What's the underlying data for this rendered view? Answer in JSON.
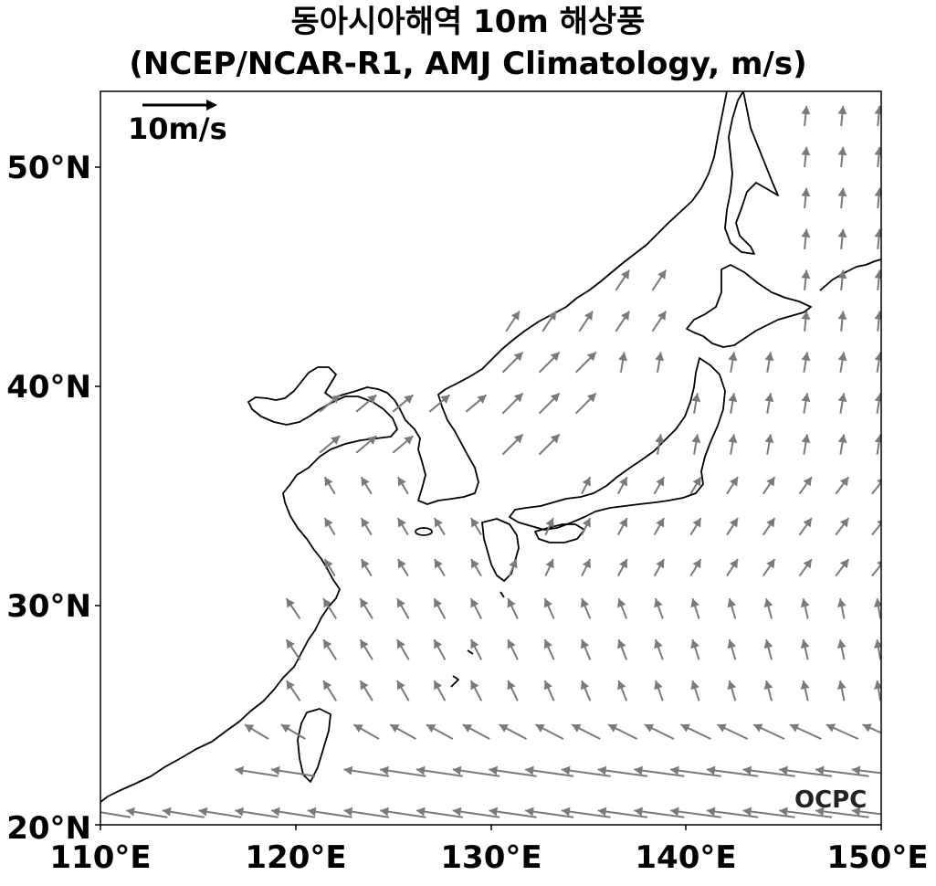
{
  "title": {
    "line1": "동아시아해역 10m 해상풍",
    "line2": "(NCEP/NCAR-R1, AMJ Climatology, m/s)"
  },
  "reference_vector": {
    "label": "10m/s",
    "speed": 10
  },
  "logo": {
    "text": "OCPC"
  },
  "axes": {
    "x_ticks": [
      110,
      120,
      130,
      140,
      150
    ],
    "x_tick_labels": [
      "110°E",
      "120°E",
      "130°E",
      "140°E",
      "150°E"
    ],
    "y_ticks": [
      20,
      30,
      40,
      50
    ],
    "y_tick_labels": [
      "20°N",
      "30°N",
      "40°N",
      "50°N"
    ],
    "lon_range": [
      110,
      150
    ],
    "lat_range": [
      20,
      53.5
    ]
  },
  "colors": {
    "vector": "#7a7a7a",
    "coastline": "#000000"
  },
  "chart_data": {
    "type": "vector-field",
    "variable": "10m wind",
    "grid_spacing_deg": 1.875,
    "note": "vectors shown on approx 1.875 degree grid over ocean"
  }
}
